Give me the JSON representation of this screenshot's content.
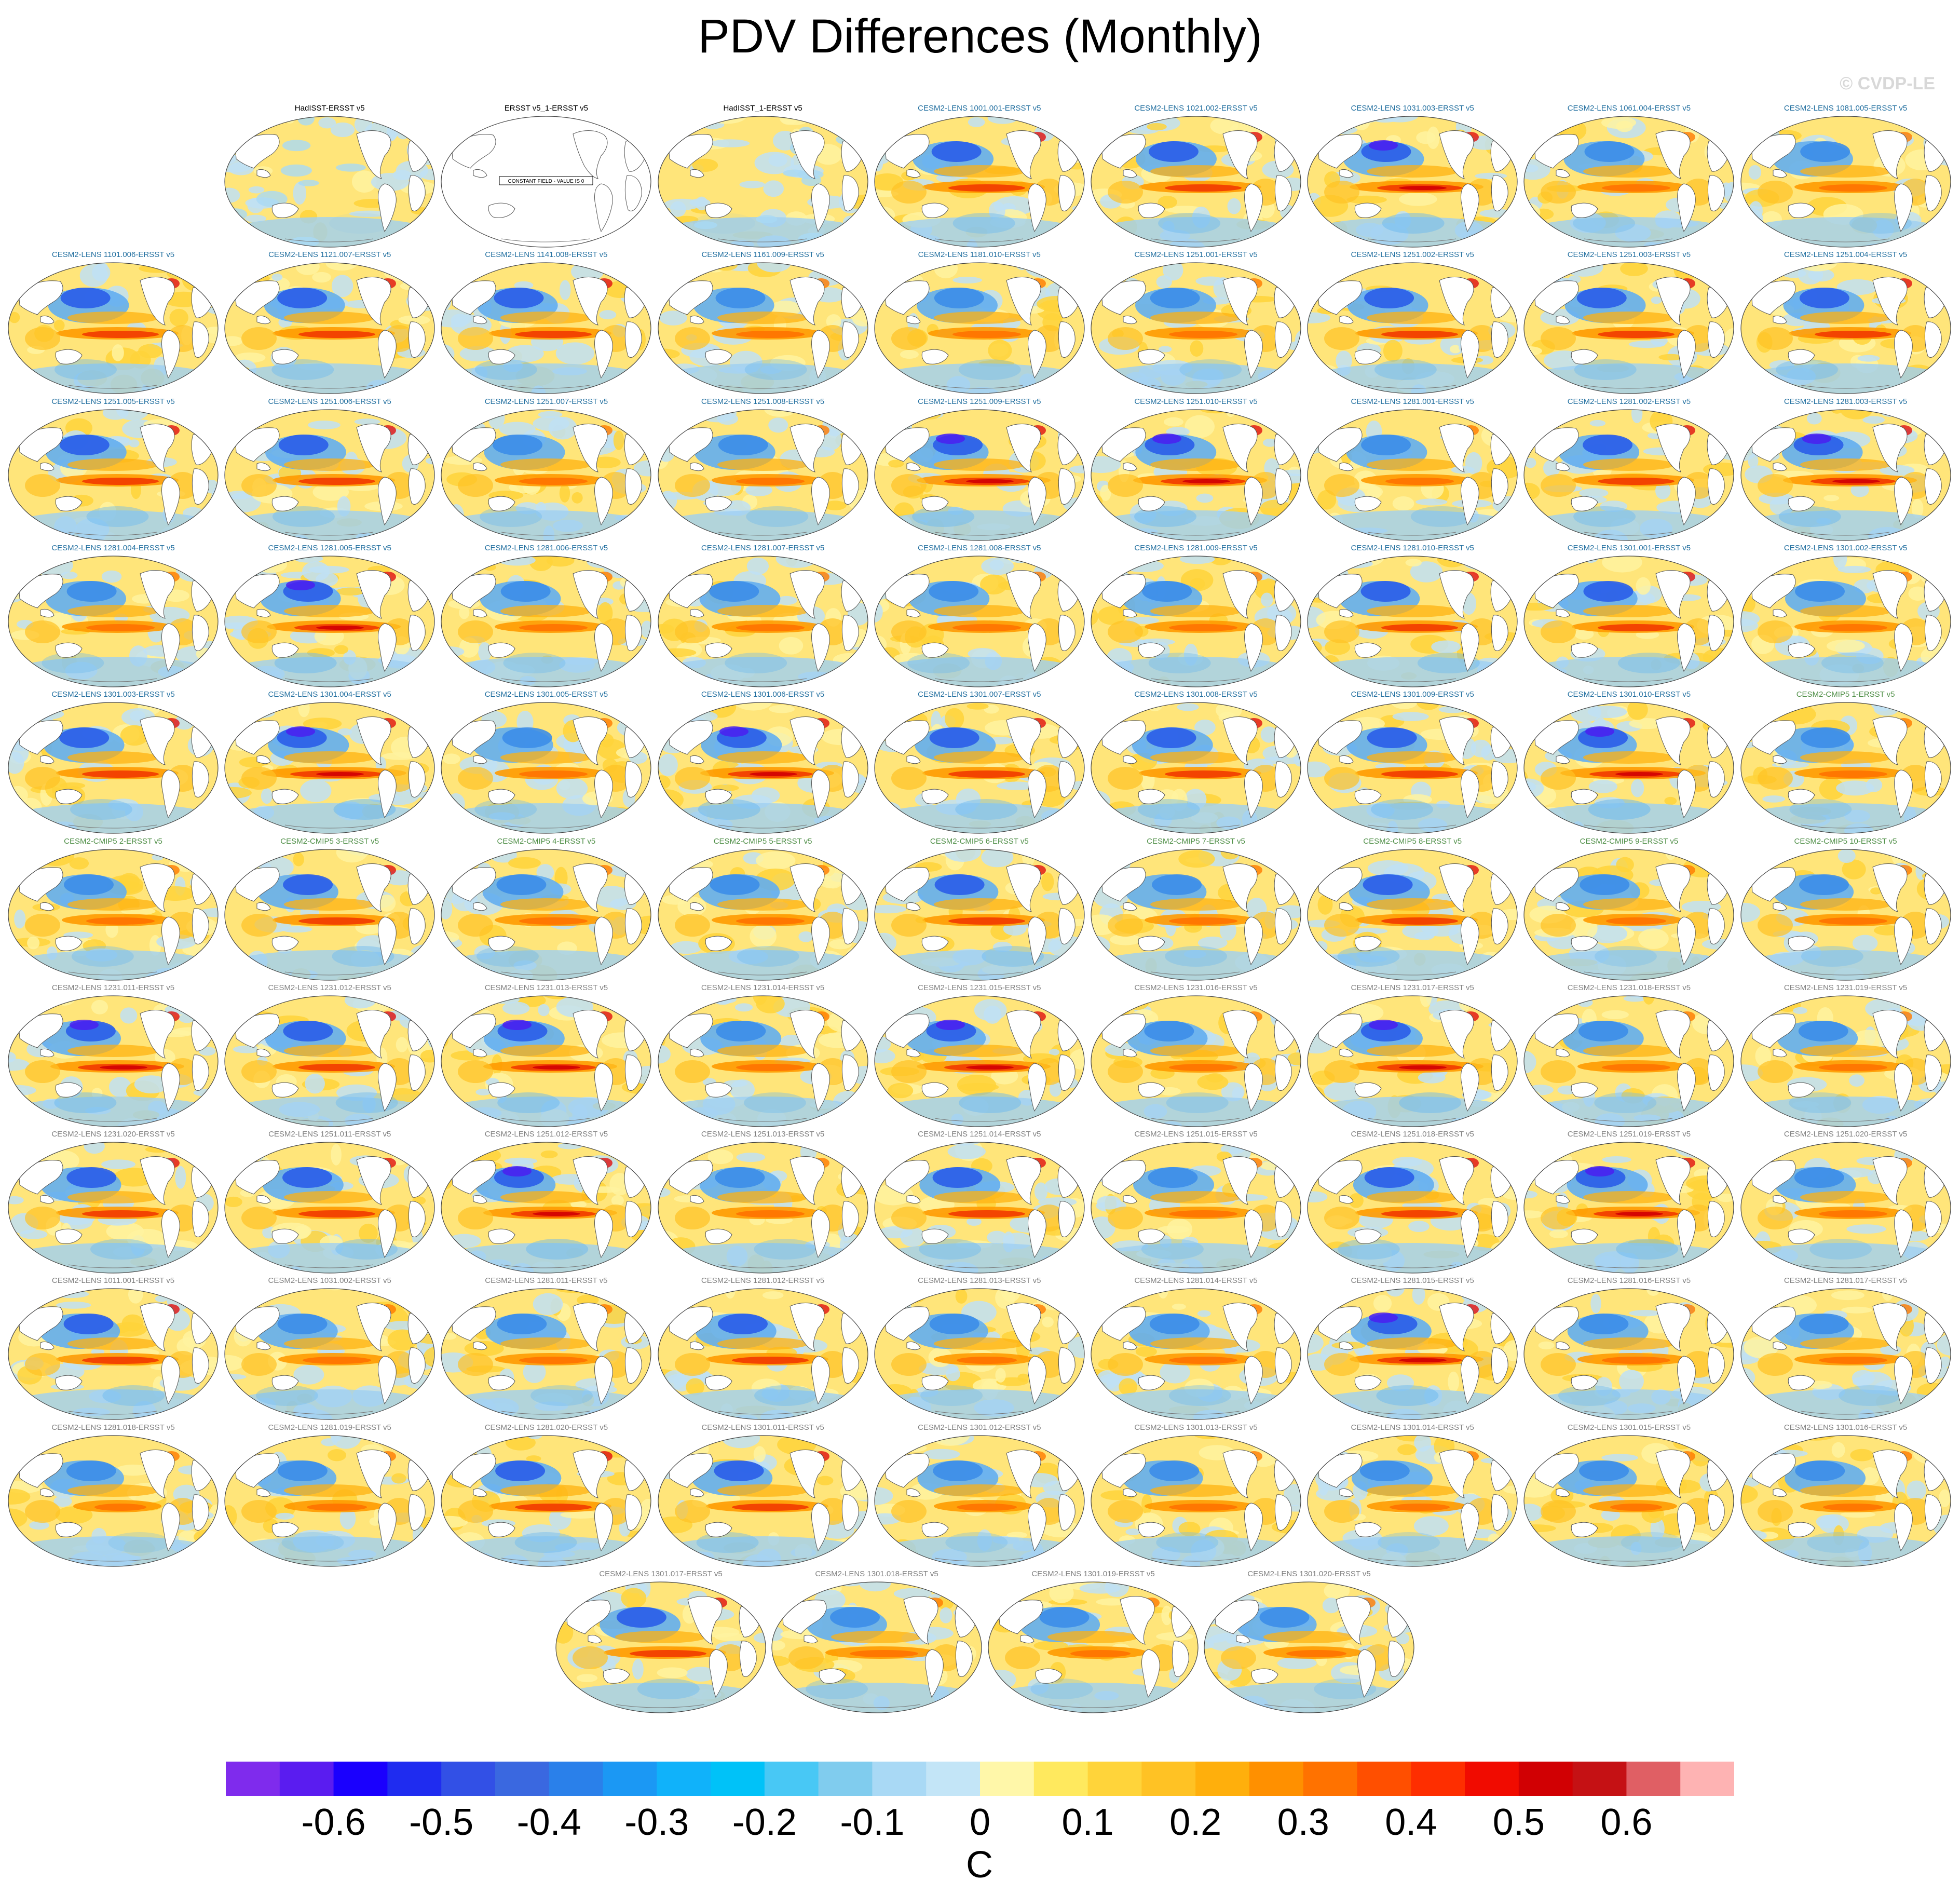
{
  "title": "PDV Differences (Monthly)",
  "watermark": "© CVDP-LE",
  "units": "C",
  "colorbar": {
    "tick_labels": [
      "-0.6",
      "-0.5",
      "-0.4",
      "-0.3",
      "-0.2",
      "-0.1",
      "0",
      "0.1",
      "0.2",
      "0.3",
      "0.4",
      "0.5",
      "0.6"
    ],
    "colors": [
      "#7f2bed",
      "#5a1cf0",
      "#1a00fe",
      "#1f2cf0",
      "#3250e6",
      "#3a68e0",
      "#2a80ea",
      "#1b98f4",
      "#10b2fa",
      "#00c2f8",
      "#48c8f5",
      "#80ccee",
      "#a9d9f5",
      "#c3e5f7",
      "#fff7a9",
      "#ffe95e",
      "#ffd43a",
      "#ffc224",
      "#ffaf0c",
      "#ff9000",
      "#ff7200",
      "#ff4f00",
      "#fe2e00",
      "#f10b00",
      "#d10003",
      "#c51114",
      "#e05f64",
      "#feb3b3"
    ]
  },
  "panel_colors": {
    "observation": "#000000",
    "model_lens": "#2370a0",
    "model_cmip": "#4f8f47",
    "model_gray": "#808080"
  },
  "panels": [
    {
      "label": "HadISST-ERSST v5",
      "group": "observation",
      "strength": 0.15
    },
    {
      "label": "ERSST v5_1-ERSST v5",
      "group": "observation",
      "strength": 0,
      "note": "CONSTANT FIELD - VALUE IS 0"
    },
    {
      "label": "HadISST_1-ERSST v5",
      "group": "observation",
      "strength": 0.15
    },
    {
      "label": "CESM2-LENS 1001.001-ERSST v5",
      "group": "model_lens",
      "strength": 0.8
    },
    {
      "label": "CESM2-LENS 1021.002-ERSST v5",
      "group": "model_lens",
      "strength": 0.8
    },
    {
      "label": "CESM2-LENS 1031.003-ERSST v5",
      "group": "model_lens",
      "strength": 0.9
    },
    {
      "label": "CESM2-LENS 1061.004-ERSST v5",
      "group": "model_lens",
      "strength": 0.7
    },
    {
      "label": "CESM2-LENS 1081.005-ERSST v5",
      "group": "model_lens",
      "strength": 0.7
    },
    {
      "label": "CESM2-LENS 1101.006-ERSST v5",
      "group": "model_lens",
      "strength": 0.8
    },
    {
      "label": "CESM2-LENS 1121.007-ERSST v5",
      "group": "model_lens",
      "strength": 0.8
    },
    {
      "label": "CESM2-LENS 1141.008-ERSST v5",
      "group": "model_lens",
      "strength": 0.8
    },
    {
      "label": "CESM2-LENS 1161.009-ERSST v5",
      "group": "model_lens",
      "strength": 0.7
    },
    {
      "label": "CESM2-LENS 1181.010-ERSST v5",
      "group": "model_lens",
      "strength": 0.7
    },
    {
      "label": "CESM2-LENS 1251.001-ERSST v5",
      "group": "model_lens",
      "strength": 0.7
    },
    {
      "label": "CESM2-LENS 1251.002-ERSST v5",
      "group": "model_lens",
      "strength": 0.8
    },
    {
      "label": "CESM2-LENS 1251.003-ERSST v5",
      "group": "model_lens",
      "strength": 0.8
    },
    {
      "label": "CESM2-LENS 1251.004-ERSST v5",
      "group": "model_lens",
      "strength": 0.8
    },
    {
      "label": "CESM2-LENS 1251.005-ERSST v5",
      "group": "model_lens",
      "strength": 0.8
    },
    {
      "label": "CESM2-LENS 1251.006-ERSST v5",
      "group": "model_lens",
      "strength": 0.8
    },
    {
      "label": "CESM2-LENS 1251.007-ERSST v5",
      "group": "model_lens",
      "strength": 0.7
    },
    {
      "label": "CESM2-LENS 1251.008-ERSST v5",
      "group": "model_lens",
      "strength": 0.7
    },
    {
      "label": "CESM2-LENS 1251.009-ERSST v5",
      "group": "model_lens",
      "strength": 0.9
    },
    {
      "label": "CESM2-LENS 1251.010-ERSST v5",
      "group": "model_lens",
      "strength": 0.9
    },
    {
      "label": "CESM2-LENS 1281.001-ERSST v5",
      "group": "model_lens",
      "strength": 0.7
    },
    {
      "label": "CESM2-LENS 1281.002-ERSST v5",
      "group": "model_lens",
      "strength": 0.8
    },
    {
      "label": "CESM2-LENS 1281.003-ERSST v5",
      "group": "model_lens",
      "strength": 0.9
    },
    {
      "label": "CESM2-LENS 1281.004-ERSST v5",
      "group": "model_lens",
      "strength": 0.7
    },
    {
      "label": "CESM2-LENS 1281.005-ERSST v5",
      "group": "model_lens",
      "strength": 0.9
    },
    {
      "label": "CESM2-LENS 1281.006-ERSST v5",
      "group": "model_lens",
      "strength": 0.7
    },
    {
      "label": "CESM2-LENS 1281.007-ERSST v5",
      "group": "model_lens",
      "strength": 0.7
    },
    {
      "label": "CESM2-LENS 1281.008-ERSST v5",
      "group": "model_lens",
      "strength": 0.7
    },
    {
      "label": "CESM2-LENS 1281.009-ERSST v5",
      "group": "model_lens",
      "strength": 0.7
    },
    {
      "label": "CESM2-LENS 1281.010-ERSST v5",
      "group": "model_lens",
      "strength": 0.8
    },
    {
      "label": "CESM2-LENS 1301.001-ERSST v5",
      "group": "model_lens",
      "strength": 0.8
    },
    {
      "label": "CESM2-LENS 1301.002-ERSST v5",
      "group": "model_lens",
      "strength": 0.7
    },
    {
      "label": "CESM2-LENS 1301.003-ERSST v5",
      "group": "model_lens",
      "strength": 0.8
    },
    {
      "label": "CESM2-LENS 1301.004-ERSST v5",
      "group": "model_lens",
      "strength": 1.0
    },
    {
      "label": "CESM2-LENS 1301.005-ERSST v5",
      "group": "model_lens",
      "strength": 0.7
    },
    {
      "label": "CESM2-LENS 1301.006-ERSST v5",
      "group": "model_lens",
      "strength": 0.9
    },
    {
      "label": "CESM2-LENS 1301.007-ERSST v5",
      "group": "model_lens",
      "strength": 0.8
    },
    {
      "label": "CESM2-LENS 1301.008-ERSST v5",
      "group": "model_lens",
      "strength": 0.8
    },
    {
      "label": "CESM2-LENS 1301.009-ERSST v5",
      "group": "model_lens",
      "strength": 0.8
    },
    {
      "label": "CESM2-LENS 1301.010-ERSST v5",
      "group": "model_lens",
      "strength": 1.0
    },
    {
      "label": "CESM2-CMIP5 1-ERSST v5",
      "group": "model_cmip",
      "strength": 0.7
    },
    {
      "label": "CESM2-CMIP5 2-ERSST v5",
      "group": "model_cmip",
      "strength": 0.7
    },
    {
      "label": "CESM2-CMIP5 3-ERSST v5",
      "group": "model_cmip",
      "strength": 0.8
    },
    {
      "label": "CESM2-CMIP5 4-ERSST v5",
      "group": "model_cmip",
      "strength": 0.7
    },
    {
      "label": "CESM2-CMIP5 5-ERSST v5",
      "group": "model_cmip",
      "strength": 0.7
    },
    {
      "label": "CESM2-CMIP5 6-ERSST v5",
      "group": "model_cmip",
      "strength": 0.8
    },
    {
      "label": "CESM2-CMIP5 7-ERSST v5",
      "group": "model_cmip",
      "strength": 0.7
    },
    {
      "label": "CESM2-CMIP5 8-ERSST v5",
      "group": "model_cmip",
      "strength": 0.8
    },
    {
      "label": "CESM2-CMIP5 9-ERSST v5",
      "group": "model_cmip",
      "strength": 0.6
    },
    {
      "label": "CESM2-CMIP5 10-ERSST v5",
      "group": "model_cmip",
      "strength": 0.7
    },
    {
      "label": "CESM2-LENS 1231.011-ERSST v5",
      "group": "model_gray",
      "strength": 0.9
    },
    {
      "label": "CESM2-LENS 1231.012-ERSST v5",
      "group": "model_gray",
      "strength": 0.8
    },
    {
      "label": "CESM2-LENS 1231.013-ERSST v5",
      "group": "model_gray",
      "strength": 0.9
    },
    {
      "label": "CESM2-LENS 1231.014-ERSST v5",
      "group": "model_gray",
      "strength": 0.7
    },
    {
      "label": "CESM2-LENS 1231.015-ERSST v5",
      "group": "model_gray",
      "strength": 0.9
    },
    {
      "label": "CESM2-LENS 1231.016-ERSST v5",
      "group": "model_gray",
      "strength": 0.7
    },
    {
      "label": "CESM2-LENS 1231.017-ERSST v5",
      "group": "model_gray",
      "strength": 0.9
    },
    {
      "label": "CESM2-LENS 1231.018-ERSST v5",
      "group": "model_gray",
      "strength": 0.7
    },
    {
      "label": "CESM2-LENS 1231.019-ERSST v5",
      "group": "model_gray",
      "strength": 0.7
    },
    {
      "label": "CESM2-LENS 1231.020-ERSST v5",
      "group": "model_gray",
      "strength": 0.8
    },
    {
      "label": "CESM2-LENS 1251.011-ERSST v5",
      "group": "model_gray",
      "strength": 0.8
    },
    {
      "label": "CESM2-LENS 1251.012-ERSST v5",
      "group": "model_gray",
      "strength": 0.9
    },
    {
      "label": "CESM2-LENS 1251.013-ERSST v5",
      "group": "model_gray",
      "strength": 0.7
    },
    {
      "label": "CESM2-LENS 1251.014-ERSST v5",
      "group": "model_gray",
      "strength": 0.8
    },
    {
      "label": "CESM2-LENS 1251.015-ERSST v5",
      "group": "model_gray",
      "strength": 0.7
    },
    {
      "label": "CESM2-LENS 1251.018-ERSST v5",
      "group": "model_gray",
      "strength": 0.8
    },
    {
      "label": "CESM2-LENS 1251.019-ERSST v5",
      "group": "model_gray",
      "strength": 0.9
    },
    {
      "label": "CESM2-LENS 1251.020-ERSST v5",
      "group": "model_gray",
      "strength": 0.7
    },
    {
      "label": "CESM2-LENS 1011.001-ERSST v5",
      "group": "model_gray",
      "strength": 0.8
    },
    {
      "label": "CESM2-LENS 1031.002-ERSST v5",
      "group": "model_gray",
      "strength": 0.7
    },
    {
      "label": "CESM2-LENS 1281.011-ERSST v5",
      "group": "model_gray",
      "strength": 0.7
    },
    {
      "label": "CESM2-LENS 1281.012-ERSST v5",
      "group": "model_gray",
      "strength": 0.8
    },
    {
      "label": "CESM2-LENS 1281.013-ERSST v5",
      "group": "model_gray",
      "strength": 0.6
    },
    {
      "label": "CESM2-LENS 1281.014-ERSST v5",
      "group": "model_gray",
      "strength": 0.7
    },
    {
      "label": "CESM2-LENS 1281.015-ERSST v5",
      "group": "model_gray",
      "strength": 0.9
    },
    {
      "label": "CESM2-LENS 1281.016-ERSST v5",
      "group": "model_gray",
      "strength": 0.7
    },
    {
      "label": "CESM2-LENS 1281.017-ERSST v5",
      "group": "model_gray",
      "strength": 0.7
    },
    {
      "label": "CESM2-LENS 1281.018-ERSST v5",
      "group": "model_gray",
      "strength": 0.5
    },
    {
      "label": "CESM2-LENS 1281.019-ERSST v5",
      "group": "model_gray",
      "strength": 0.6
    },
    {
      "label": "CESM2-LENS 1281.020-ERSST v5",
      "group": "model_gray",
      "strength": 0.8
    },
    {
      "label": "CESM2-LENS 1301.011-ERSST v5",
      "group": "model_gray",
      "strength": 0.8
    },
    {
      "label": "CESM2-LENS 1301.012-ERSST v5",
      "group": "model_gray",
      "strength": 0.6
    },
    {
      "label": "CESM2-LENS 1301.013-ERSST v5",
      "group": "model_gray",
      "strength": 0.7
    },
    {
      "label": "CESM2-LENS 1301.014-ERSST v5",
      "group": "model_gray",
      "strength": 0.6
    },
    {
      "label": "CESM2-LENS 1301.015-ERSST v5",
      "group": "model_gray",
      "strength": 0.5
    },
    {
      "label": "CESM2-LENS 1301.016-ERSST v5",
      "group": "model_gray",
      "strength": 0.6
    },
    {
      "label": "CESM2-LENS 1301.017-ERSST v5",
      "group": "model_gray",
      "strength": 0.8
    },
    {
      "label": "CESM2-LENS 1301.018-ERSST v5",
      "group": "model_gray",
      "strength": 0.7
    },
    {
      "label": "CESM2-LENS 1301.019-ERSST v5",
      "group": "model_gray",
      "strength": 0.6
    },
    {
      "label": "CESM2-LENS 1301.020-ERSST v5",
      "group": "model_gray",
      "strength": 0.6
    }
  ]
}
